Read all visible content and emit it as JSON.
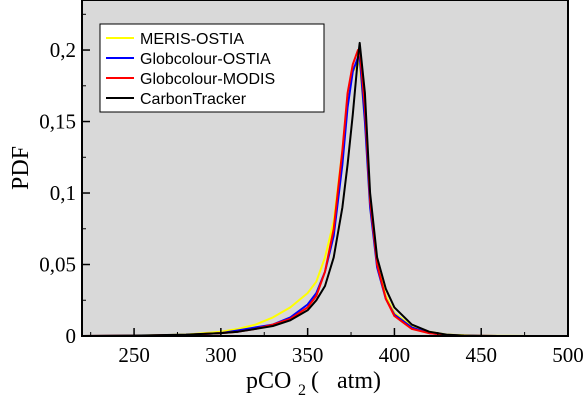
{
  "chart_data": {
    "type": "line",
    "title": "",
    "xlabel": "pCO",
    "xlabel_sub": "2",
    "xlabel_units": "(   atm)",
    "ylabel": "PDF",
    "xlim": [
      220,
      500
    ],
    "ylim": [
      0,
      0.235
    ],
    "x_ticks": [
      250,
      300,
      350,
      400,
      450,
      500
    ],
    "x_tick_labels": [
      "250",
      "300",
      "350",
      "400",
      "450",
      "500"
    ],
    "y_ticks": [
      0,
      0.05,
      0.1,
      0.15,
      0.2
    ],
    "y_tick_labels": [
      "0",
      "0,05",
      "0,1",
      "0,15",
      "0,2"
    ],
    "grid": false,
    "background": "#d9d9d9",
    "legend_position": "top-left",
    "series": [
      {
        "name": "MERIS-OSTIA",
        "color": "#ffff00",
        "x": [
          220,
          250,
          280,
          300,
          310,
          320,
          330,
          340,
          350,
          355,
          360,
          365,
          370,
          373,
          376,
          379,
          380,
          383,
          386,
          390,
          395,
          400,
          410,
          420,
          430,
          440,
          450,
          460,
          480,
          500
        ],
        "y": [
          0,
          0.0002,
          0.001,
          0.003,
          0.005,
          0.008,
          0.013,
          0.02,
          0.03,
          0.038,
          0.055,
          0.08,
          0.13,
          0.165,
          0.185,
          0.19,
          0.19,
          0.15,
          0.09,
          0.05,
          0.028,
          0.016,
          0.007,
          0.003,
          0.001,
          0.0005,
          0.0002,
          0.0001,
          0,
          0
        ]
      },
      {
        "name": "Globcolour-OSTIA",
        "color": "#0000ff",
        "x": [
          220,
          250,
          280,
          300,
          310,
          320,
          330,
          340,
          350,
          355,
          360,
          365,
          370,
          373,
          376,
          379,
          380,
          383,
          386,
          390,
          395,
          400,
          410,
          420,
          430,
          440,
          450,
          460,
          470
        ],
        "y": [
          0,
          0.0002,
          0.0008,
          0.002,
          0.004,
          0.006,
          0.008,
          0.013,
          0.022,
          0.03,
          0.045,
          0.07,
          0.12,
          0.16,
          0.185,
          0.195,
          0.195,
          0.15,
          0.09,
          0.048,
          0.026,
          0.015,
          0.006,
          0.002,
          0.0008,
          0.0003,
          0.0001,
          0,
          0
        ]
      },
      {
        "name": "Globcolour-MODIS",
        "color": "#ff0000",
        "x": [
          220,
          250,
          280,
          300,
          310,
          320,
          330,
          340,
          350,
          355,
          360,
          365,
          370,
          373,
          376,
          379,
          380,
          383,
          386,
          390,
          395,
          400,
          410,
          420,
          430,
          440,
          450,
          460,
          470
        ],
        "y": [
          0,
          0.0002,
          0.0008,
          0.002,
          0.003,
          0.005,
          0.008,
          0.012,
          0.02,
          0.028,
          0.045,
          0.075,
          0.13,
          0.17,
          0.19,
          0.2,
          0.2,
          0.16,
          0.095,
          0.05,
          0.026,
          0.014,
          0.005,
          0.002,
          0.0007,
          0.0002,
          0.0001,
          0,
          0
        ]
      },
      {
        "name": "CarbonTracker",
        "color": "#000000",
        "x": [
          220,
          250,
          280,
          300,
          310,
          320,
          330,
          340,
          350,
          355,
          360,
          365,
          370,
          373,
          376,
          379,
          380,
          383,
          386,
          390,
          395,
          400,
          410,
          420,
          430,
          440,
          450,
          460,
          470
        ],
        "y": [
          0,
          0.0003,
          0.001,
          0.002,
          0.003,
          0.005,
          0.007,
          0.011,
          0.018,
          0.025,
          0.035,
          0.055,
          0.09,
          0.12,
          0.155,
          0.195,
          0.205,
          0.17,
          0.1,
          0.055,
          0.033,
          0.02,
          0.008,
          0.003,
          0.001,
          0.0003,
          0.0001,
          0,
          0
        ]
      }
    ]
  }
}
